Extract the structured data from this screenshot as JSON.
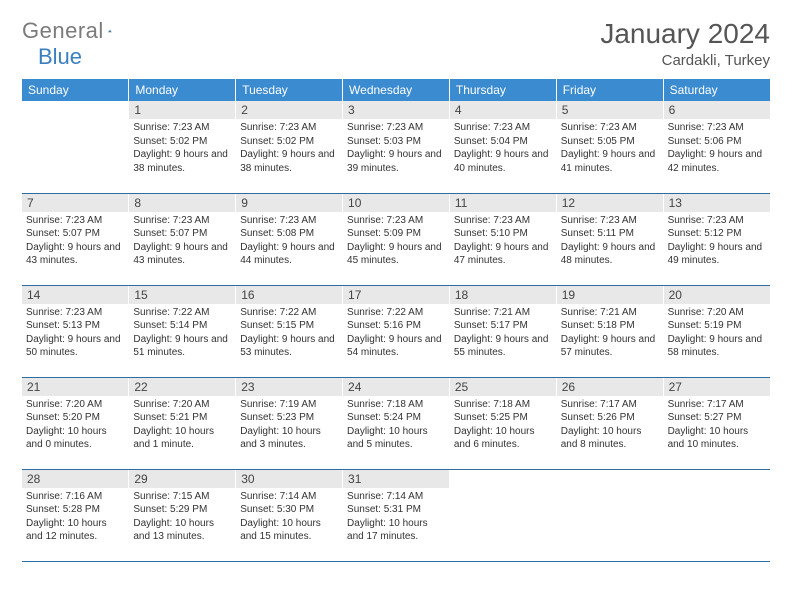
{
  "brand": {
    "word1": "General",
    "word2": "Blue"
  },
  "title": "January 2024",
  "location": "Cardakli, Turkey",
  "day_headers": [
    "Sunday",
    "Monday",
    "Tuesday",
    "Wednesday",
    "Thursday",
    "Friday",
    "Saturday"
  ],
  "colors": {
    "header_bg": "#3a8bcf",
    "header_text": "#ffffff",
    "daynum_bg": "#e8e8e8",
    "row_border": "#2e6da4",
    "logo_gray": "#7b7b7b",
    "logo_blue": "#3a7fc2"
  },
  "start_offset": 1,
  "days": [
    {
      "n": "1",
      "sr": "7:23 AM",
      "ss": "5:02 PM",
      "dl": "9 hours and 38 minutes."
    },
    {
      "n": "2",
      "sr": "7:23 AM",
      "ss": "5:02 PM",
      "dl": "9 hours and 38 minutes."
    },
    {
      "n": "3",
      "sr": "7:23 AM",
      "ss": "5:03 PM",
      "dl": "9 hours and 39 minutes."
    },
    {
      "n": "4",
      "sr": "7:23 AM",
      "ss": "5:04 PM",
      "dl": "9 hours and 40 minutes."
    },
    {
      "n": "5",
      "sr": "7:23 AM",
      "ss": "5:05 PM",
      "dl": "9 hours and 41 minutes."
    },
    {
      "n": "6",
      "sr": "7:23 AM",
      "ss": "5:06 PM",
      "dl": "9 hours and 42 minutes."
    },
    {
      "n": "7",
      "sr": "7:23 AM",
      "ss": "5:07 PM",
      "dl": "9 hours and 43 minutes."
    },
    {
      "n": "8",
      "sr": "7:23 AM",
      "ss": "5:07 PM",
      "dl": "9 hours and 43 minutes."
    },
    {
      "n": "9",
      "sr": "7:23 AM",
      "ss": "5:08 PM",
      "dl": "9 hours and 44 minutes."
    },
    {
      "n": "10",
      "sr": "7:23 AM",
      "ss": "5:09 PM",
      "dl": "9 hours and 45 minutes."
    },
    {
      "n": "11",
      "sr": "7:23 AM",
      "ss": "5:10 PM",
      "dl": "9 hours and 47 minutes."
    },
    {
      "n": "12",
      "sr": "7:23 AM",
      "ss": "5:11 PM",
      "dl": "9 hours and 48 minutes."
    },
    {
      "n": "13",
      "sr": "7:23 AM",
      "ss": "5:12 PM",
      "dl": "9 hours and 49 minutes."
    },
    {
      "n": "14",
      "sr": "7:23 AM",
      "ss": "5:13 PM",
      "dl": "9 hours and 50 minutes."
    },
    {
      "n": "15",
      "sr": "7:22 AM",
      "ss": "5:14 PM",
      "dl": "9 hours and 51 minutes."
    },
    {
      "n": "16",
      "sr": "7:22 AM",
      "ss": "5:15 PM",
      "dl": "9 hours and 53 minutes."
    },
    {
      "n": "17",
      "sr": "7:22 AM",
      "ss": "5:16 PM",
      "dl": "9 hours and 54 minutes."
    },
    {
      "n": "18",
      "sr": "7:21 AM",
      "ss": "5:17 PM",
      "dl": "9 hours and 55 minutes."
    },
    {
      "n": "19",
      "sr": "7:21 AM",
      "ss": "5:18 PM",
      "dl": "9 hours and 57 minutes."
    },
    {
      "n": "20",
      "sr": "7:20 AM",
      "ss": "5:19 PM",
      "dl": "9 hours and 58 minutes."
    },
    {
      "n": "21",
      "sr": "7:20 AM",
      "ss": "5:20 PM",
      "dl": "10 hours and 0 minutes."
    },
    {
      "n": "22",
      "sr": "7:20 AM",
      "ss": "5:21 PM",
      "dl": "10 hours and 1 minute."
    },
    {
      "n": "23",
      "sr": "7:19 AM",
      "ss": "5:23 PM",
      "dl": "10 hours and 3 minutes."
    },
    {
      "n": "24",
      "sr": "7:18 AM",
      "ss": "5:24 PM",
      "dl": "10 hours and 5 minutes."
    },
    {
      "n": "25",
      "sr": "7:18 AM",
      "ss": "5:25 PM",
      "dl": "10 hours and 6 minutes."
    },
    {
      "n": "26",
      "sr": "7:17 AM",
      "ss": "5:26 PM",
      "dl": "10 hours and 8 minutes."
    },
    {
      "n": "27",
      "sr": "7:17 AM",
      "ss": "5:27 PM",
      "dl": "10 hours and 10 minutes."
    },
    {
      "n": "28",
      "sr": "7:16 AM",
      "ss": "5:28 PM",
      "dl": "10 hours and 12 minutes."
    },
    {
      "n": "29",
      "sr": "7:15 AM",
      "ss": "5:29 PM",
      "dl": "10 hours and 13 minutes."
    },
    {
      "n": "30",
      "sr": "7:14 AM",
      "ss": "5:30 PM",
      "dl": "10 hours and 15 minutes."
    },
    {
      "n": "31",
      "sr": "7:14 AM",
      "ss": "5:31 PM",
      "dl": "10 hours and 17 minutes."
    }
  ],
  "labels": {
    "sunrise": "Sunrise:",
    "sunset": "Sunset:",
    "daylight": "Daylight:"
  }
}
